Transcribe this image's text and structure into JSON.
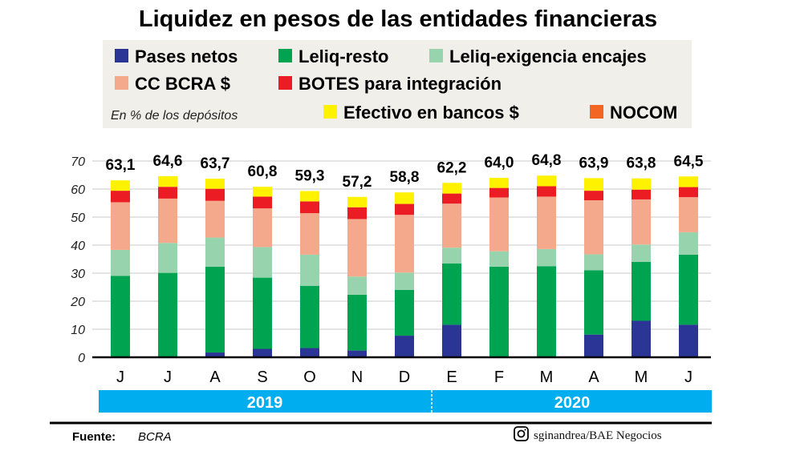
{
  "chart_data": {
    "type": "bar",
    "stacked": true,
    "title": "Liquidez en pesos de las entidades financieras",
    "subtitle": "En % de los depósitos",
    "categories": [
      "J",
      "J",
      "A",
      "S",
      "O",
      "N",
      "D",
      "E",
      "F",
      "M",
      "A",
      "M",
      "J"
    ],
    "years": [
      {
        "label": "2019"
      },
      {
        "label": "2020"
      }
    ],
    "totals": [
      "63,1",
      "64,6",
      "63,7",
      "60,8",
      "59,3",
      "57,2",
      "58,8",
      "62,2",
      "64,0",
      "64,8",
      "63,9",
      "63,8",
      "64,5"
    ],
    "ylim": [
      0,
      70
    ],
    "yticks": [
      "0",
      "10",
      "20",
      "30",
      "40",
      "50",
      "60",
      "70"
    ],
    "grid": true,
    "legend_position": "top",
    "series": [
      {
        "name": "Pases netos",
        "color": "#2b3595",
        "values": [
          0,
          0,
          1.7,
          3.0,
          3.3,
          2.4,
          7.7,
          11.6,
          0,
          0,
          8.1,
          13.0,
          11.6
        ]
      },
      {
        "name": "Leliq-resto",
        "color": "#00a34f",
        "values": [
          29.0,
          30.1,
          30.6,
          25.4,
          22.2,
          19.9,
          16.3,
          21.9,
          32.3,
          32.5,
          22.9,
          21.0,
          25.0
        ]
      },
      {
        "name": "Leliq-exigencia encajes",
        "color": "#97d4ad",
        "values": [
          9.3,
          10.7,
          10.4,
          10.9,
          11.1,
          6.5,
          6.2,
          5.6,
          5.5,
          6.1,
          5.7,
          6.2,
          8.0
        ]
      },
      {
        "name": "CC BCRA $",
        "color": "#f5a98c",
        "values": [
          17.0,
          15.8,
          13.1,
          13.8,
          14.8,
          20.5,
          20.6,
          15.7,
          19.2,
          18.7,
          19.3,
          16.1,
          12.5
        ]
      },
      {
        "name": "BOTES para integración",
        "color": "#ec1c24",
        "values": [
          4.1,
          4.2,
          4.3,
          4.2,
          4.2,
          4.2,
          3.9,
          3.6,
          3.4,
          3.7,
          3.4,
          3.5,
          3.6
        ]
      },
      {
        "name": "Efectivo en bancos $",
        "color": "#fff200",
        "values": [
          3.7,
          3.8,
          3.6,
          3.5,
          3.7,
          3.7,
          4.1,
          3.8,
          3.6,
          3.8,
          4.5,
          4.0,
          3.8
        ]
      },
      {
        "name": "NOCOM",
        "color": "#f26522",
        "values": [
          0,
          0,
          0,
          0,
          0,
          0,
          0,
          0,
          0,
          0,
          0,
          0,
          0
        ]
      }
    ],
    "year_bar_color": "#00aeef"
  },
  "footer": {
    "source_label": "Fuente:",
    "source_value": "BCRA",
    "credit": "sginandrea/BAE Negocios",
    "credit_icon": "instagram-icon"
  }
}
